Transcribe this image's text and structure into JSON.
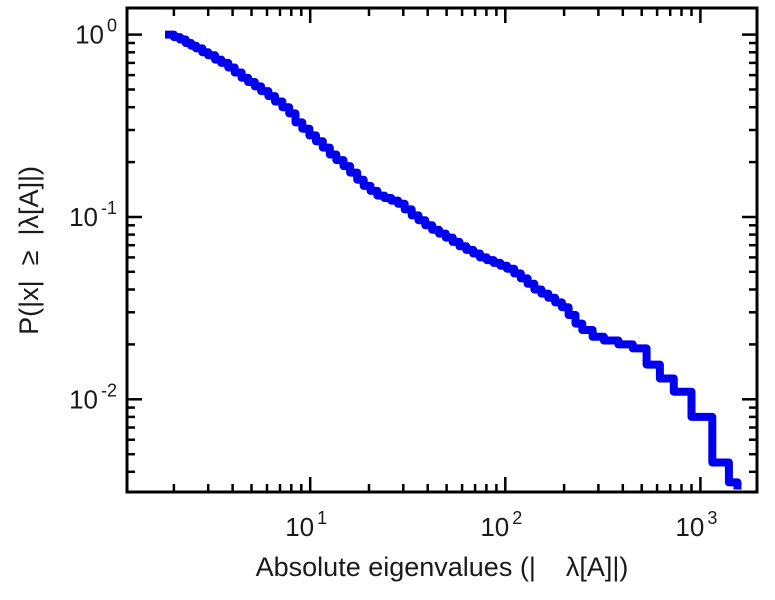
{
  "figure": {
    "title": "",
    "x_axis_label": "Absolute eigenvalues (|    λ[A]|)",
    "y_axis_label": "P(|x|  ≥  |λ[A]|)",
    "background_color": "#ffffff",
    "text_color": "#1a1a1a"
  },
  "chart_data": {
    "type": "line",
    "subtype": "empirical-ccdf-step",
    "title": "",
    "xlabel": "Absolute eigenvalues (|λ[A]|)",
    "ylabel": "P(|x| ≥ |λ[A]|)",
    "x_scale": "log",
    "y_scale": "log",
    "xlim": [
      1.15,
      1950
    ],
    "ylim": [
      0.0031,
      1.4
    ],
    "x_major_ticks": [
      10,
      100,
      1000
    ],
    "y_major_ticks": [
      1,
      0.1,
      0.01
    ],
    "grid": false,
    "legend": false,
    "line_color": "#0000ee",
    "line_width": 8,
    "axis_color": "#000000",
    "x": [
      1.8,
      2.0,
      2.15,
      2.3,
      2.45,
      2.6,
      2.8,
      3.0,
      3.25,
      3.5,
      3.8,
      4.1,
      4.45,
      4.8,
      5.2,
      5.6,
      6.1,
      6.6,
      7.2,
      7.8,
      8.4,
      9.1,
      9.9,
      10.7,
      11.6,
      12.6,
      13.6,
      14.8,
      16.0,
      17.4,
      18.8,
      20.4,
      22.1,
      24.0,
      26.0,
      28.2,
      30.5,
      33.1,
      35.9,
      38.9,
      42.2,
      45.7,
      49.5,
      53.7,
      58.2,
      63.1,
      68.4,
      74.1,
      80.4,
      87.1,
      94.4,
      102,
      111,
      120,
      130,
      141,
      153,
      166,
      180,
      195,
      211,
      229,
      248,
      280,
      320,
      380,
      450,
      530,
      620,
      730,
      900,
      1150,
      1400,
      1550
    ],
    "y": [
      1.0,
      0.97,
      0.94,
      0.9,
      0.87,
      0.84,
      0.8,
      0.77,
      0.73,
      0.7,
      0.66,
      0.62,
      0.58,
      0.55,
      0.52,
      0.49,
      0.46,
      0.43,
      0.4,
      0.37,
      0.33,
      0.305,
      0.28,
      0.26,
      0.24,
      0.22,
      0.205,
      0.19,
      0.175,
      0.16,
      0.148,
      0.139,
      0.131,
      0.127,
      0.123,
      0.118,
      0.11,
      0.102,
      0.096,
      0.09,
      0.085,
      0.081,
      0.077,
      0.073,
      0.069,
      0.066,
      0.063,
      0.06,
      0.058,
      0.056,
      0.054,
      0.052,
      0.049,
      0.046,
      0.043,
      0.04,
      0.038,
      0.036,
      0.034,
      0.032,
      0.029,
      0.026,
      0.024,
      0.022,
      0.021,
      0.02,
      0.019,
      0.0155,
      0.013,
      0.011,
      0.008,
      0.0045,
      0.0035,
      0.0032
    ]
  }
}
